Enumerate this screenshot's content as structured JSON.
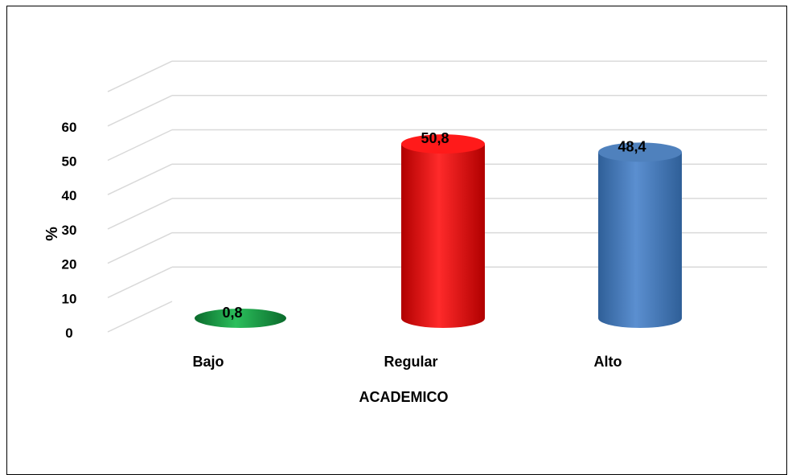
{
  "chart_data": {
    "type": "bar",
    "style": "3d-cylinder",
    "categories": [
      "Bajo",
      "Regular",
      "Alto"
    ],
    "values": [
      0.8,
      50.8,
      48.4
    ],
    "value_labels": [
      "0,8",
      "50,8",
      "48,4"
    ],
    "colors": [
      "#1e9e48",
      "#ff1a1a",
      "#4f81bd"
    ],
    "xlabel": "ACADEMICO",
    "ylabel": "%",
    "ylim": [
      0,
      70
    ],
    "yticks": [
      0,
      10,
      20,
      30,
      40,
      50,
      60
    ],
    "grid": true,
    "legend": "none"
  }
}
